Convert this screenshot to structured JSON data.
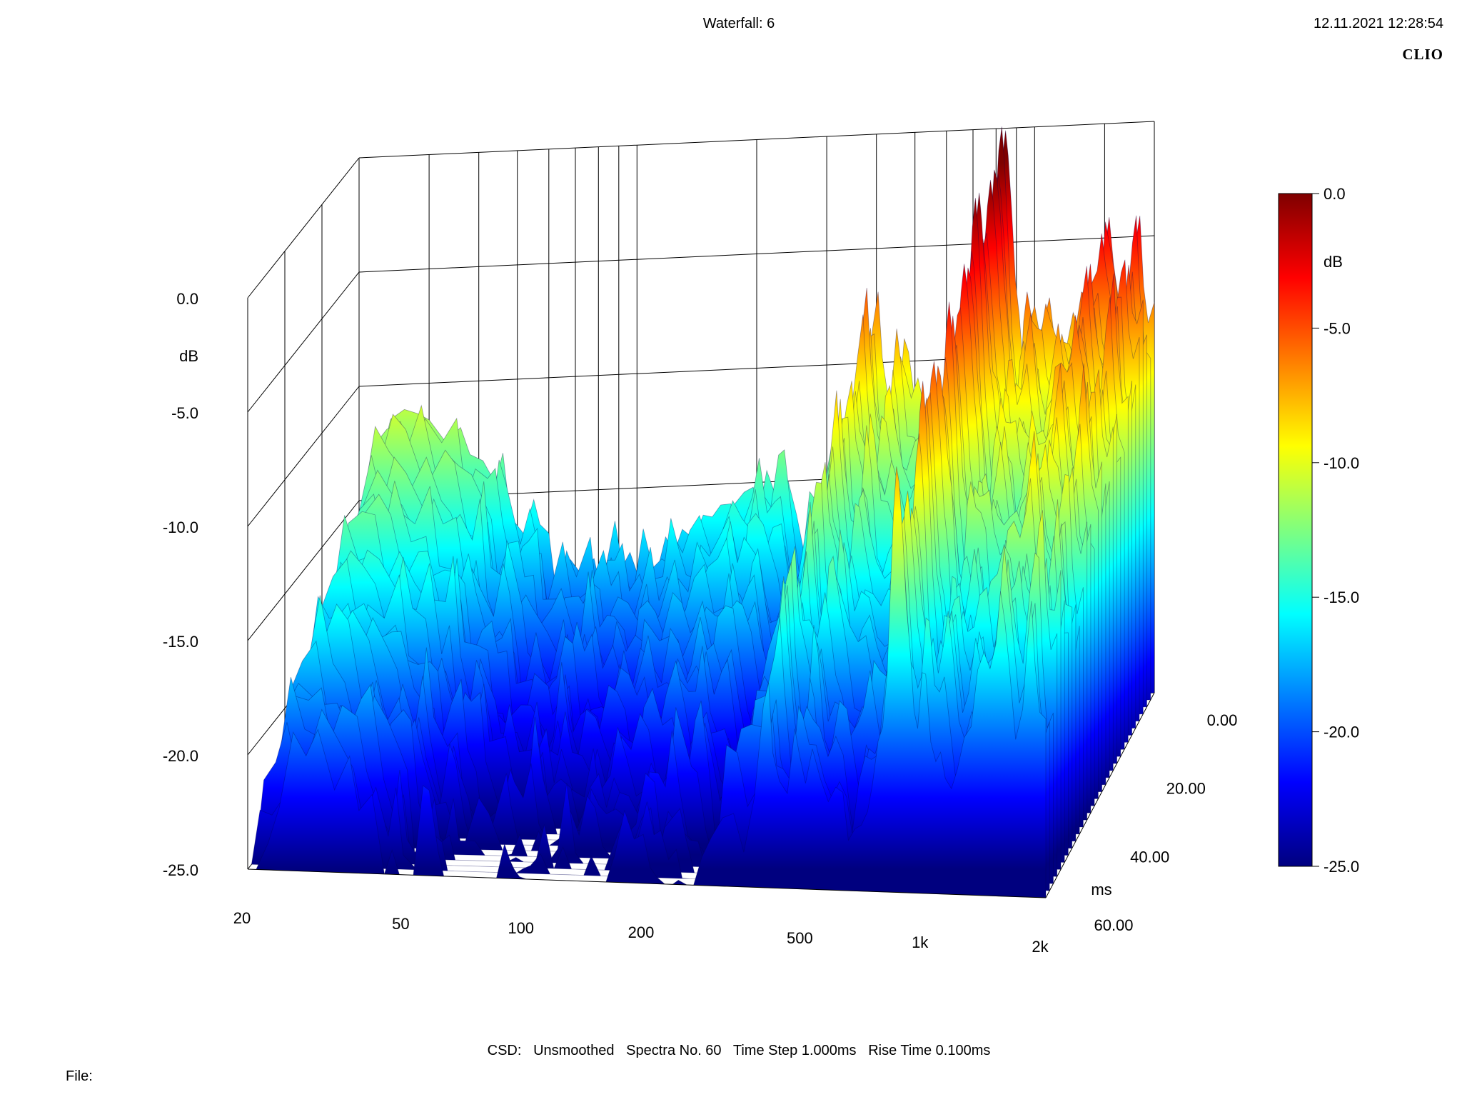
{
  "header": {
    "title": "Waterfall: 6",
    "timestamp": "12.11.2021 12:28:54",
    "brand": "CLIO"
  },
  "footer": {
    "csd_info": "CSD:   Unsmoothed   Spectra No. 60   Time Step 1.000ms   Rise Time 0.100ms",
    "file_label": "File:"
  },
  "colors": {
    "grid": "#000000",
    "background": "#ffffff",
    "colormap": [
      "#00007f",
      "#0000ff",
      "#007fff",
      "#00ffff",
      "#7fff7f",
      "#ffff00",
      "#ff7f00",
      "#ff0000",
      "#7f0000"
    ]
  },
  "chart_data": {
    "type": "waterfall",
    "x_axis": {
      "label": "",
      "scale": "log",
      "range": [
        20,
        2000
      ],
      "ticks": [
        {
          "v": 20,
          "label": "20"
        },
        {
          "v": 50,
          "label": "50"
        },
        {
          "v": 100,
          "label": "100"
        },
        {
          "v": 200,
          "label": "200"
        },
        {
          "v": 500,
          "label": "500"
        },
        {
          "v": 1000,
          "label": "1k"
        },
        {
          "v": 2000,
          "label": "2k"
        }
      ]
    },
    "y_axis": {
      "label": "dB",
      "range": [
        -25,
        0
      ],
      "ticks": [
        {
          "v": 0,
          "label": "0.0"
        },
        {
          "v": -5,
          "label": "-5.0"
        },
        {
          "v": -10,
          "label": "-10.0"
        },
        {
          "v": -15,
          "label": "-15.0"
        },
        {
          "v": -20,
          "label": "-20.0"
        },
        {
          "v": -25,
          "label": "-25.0"
        }
      ]
    },
    "z_axis": {
      "label": "ms",
      "range": [
        0,
        60
      ],
      "ticks": [
        {
          "v": 0,
          "label": "0.00"
        },
        {
          "v": 20,
          "label": "20.00"
        },
        {
          "v": 40,
          "label": "40.00"
        },
        {
          "v": 60,
          "label": "60.00"
        }
      ]
    },
    "colorbar": {
      "label": "dB",
      "range": [
        -25,
        0
      ],
      "ticks": [
        {
          "v": 0,
          "label": "0.0"
        },
        {
          "v": -5,
          "label": "-5.0"
        },
        {
          "v": -10,
          "label": "-10.0"
        },
        {
          "v": -15,
          "label": "-15.0"
        },
        {
          "v": -20,
          "label": "-20.0"
        },
        {
          "v": -25,
          "label": "-25.0"
        }
      ]
    },
    "grid": true,
    "first_slice_points": [
      [
        20,
        -20.5
      ],
      [
        21,
        -16.5
      ],
      [
        22.5,
        -13.5
      ],
      [
        24,
        -11.5
      ],
      [
        26,
        -11.1
      ],
      [
        28,
        -11.3
      ],
      [
        30,
        -11.6
      ],
      [
        33,
        -12.6
      ],
      [
        36,
        -12.0
      ],
      [
        38,
        -13.2
      ],
      [
        41,
        -13.5
      ],
      [
        44,
        -14.5
      ],
      [
        46,
        -13.2
      ],
      [
        48,
        -16.0
      ],
      [
        52,
        -16.8
      ],
      [
        55,
        -15.3
      ],
      [
        57,
        -16.4
      ],
      [
        60,
        -16.8
      ],
      [
        62,
        -18.8
      ],
      [
        68,
        -18.0
      ],
      [
        72,
        -18.6
      ],
      [
        78,
        -18.0
      ],
      [
        80,
        -18.9
      ],
      [
        84,
        -18.2
      ],
      [
        88,
        -16.4
      ],
      [
        92,
        -18.4
      ],
      [
        96,
        -17.8
      ],
      [
        100,
        -18.7
      ],
      [
        106,
        -18.1
      ],
      [
        112,
        -18.8
      ],
      [
        118,
        -17.2
      ],
      [
        124,
        -17.9
      ],
      [
        130,
        -16.9
      ],
      [
        136,
        -17.2
      ],
      [
        142,
        -16.6
      ],
      [
        150,
        -17.0
      ],
      [
        158,
        -16.3
      ],
      [
        166,
        -16.4
      ],
      [
        176,
        -15.9
      ],
      [
        186,
        -15.4
      ],
      [
        196,
        -15.2
      ],
      [
        204,
        -16.1
      ],
      [
        212,
        -14.5
      ],
      [
        222,
        -15.5
      ],
      [
        232,
        -15.0
      ],
      [
        240,
        -15.0
      ],
      [
        252,
        -16.5
      ],
      [
        262,
        -18.0
      ],
      [
        275,
        -17.8
      ],
      [
        290,
        -17.0
      ],
      [
        310,
        -14.3
      ],
      [
        330,
        -13.1
      ],
      [
        350,
        -12.5
      ],
      [
        372,
        -11.6
      ],
      [
        392,
        -8.4
      ],
      [
        404,
        -6.9
      ],
      [
        414,
        -9.8
      ],
      [
        430,
        -11.8
      ],
      [
        450,
        -13.0
      ],
      [
        470,
        -9.0
      ],
      [
        482,
        -9.6
      ],
      [
        500,
        -11.8
      ],
      [
        520,
        -12.1
      ],
      [
        545,
        -12.6
      ],
      [
        570,
        -12.7
      ],
      [
        595,
        -12.9
      ],
      [
        620,
        -13.3
      ],
      [
        640,
        -14.1
      ],
      [
        665,
        -11.9
      ],
      [
        690,
        -11.6
      ],
      [
        715,
        -11.5
      ],
      [
        735,
        -10.2
      ],
      [
        760,
        -7.7
      ],
      [
        780,
        -7.2
      ],
      [
        800,
        -6.0
      ],
      [
        815,
        -3.6
      ],
      [
        830,
        -1.3
      ],
      [
        845,
        -0.1
      ],
      [
        858,
        -1.2
      ],
      [
        875,
        -3.5
      ],
      [
        895,
        -6.7
      ],
      [
        915,
        -8.2
      ],
      [
        935,
        -10.4
      ],
      [
        955,
        -11.1
      ],
      [
        980,
        -8.4
      ],
      [
        1000,
        -7.8
      ],
      [
        1030,
        -9.1
      ],
      [
        1060,
        -8.4
      ],
      [
        1090,
        -7.5
      ],
      [
        1120,
        -9.2
      ],
      [
        1160,
        -10.6
      ],
      [
        1200,
        -9.8
      ],
      [
        1250,
        -8.2
      ],
      [
        1300,
        -9.0
      ],
      [
        1350,
        -8.0
      ],
      [
        1400,
        -7.1
      ],
      [
        1450,
        -6.8
      ],
      [
        1500,
        -5.6
      ],
      [
        1540,
        -4.1
      ],
      [
        1580,
        -6.2
      ],
      [
        1620,
        -7.5
      ],
      [
        1680,
        -9.2
      ],
      [
        1750,
        -7.3
      ],
      [
        1800,
        -5.1
      ],
      [
        1840,
        -4.1
      ],
      [
        1880,
        -7.2
      ],
      [
        1930,
        -8.8
      ],
      [
        2000,
        -7.9
      ]
    ]
  }
}
